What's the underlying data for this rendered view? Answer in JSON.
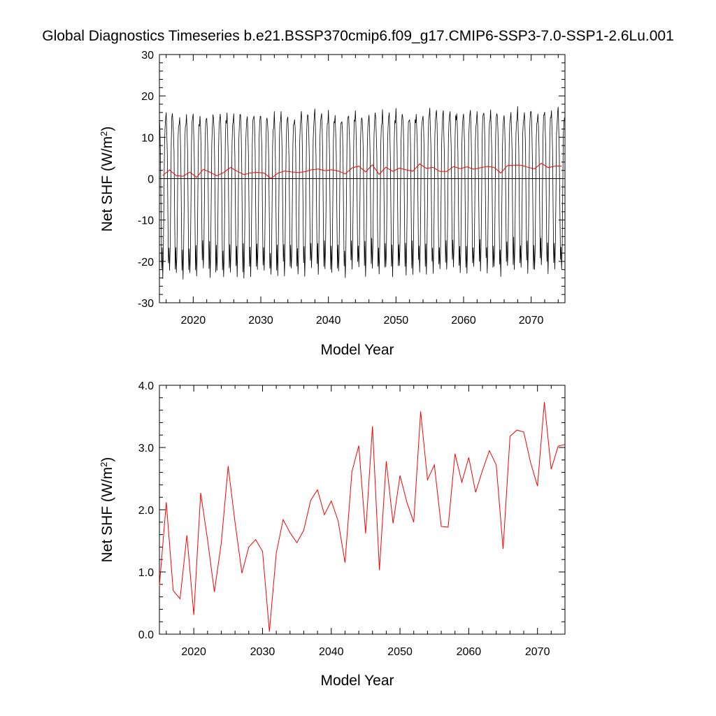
{
  "title": "Global Diagnostics Timeseries b.e21.BSSP370cmip6.f09_g17.CMIP6-SSP3-7.0-SSP1-2.6Lu.001",
  "chart_data": [
    {
      "type": "line",
      "xlabel": "Model Year",
      "ylabel_main": "Net SHF (W/m",
      "ylabel_sup": "2",
      "ylabel_close": ")",
      "xlim": [
        2015,
        2075
      ],
      "ylim": [
        -30,
        30
      ],
      "x_ticks": [
        2020,
        2030,
        2040,
        2050,
        2060,
        2070
      ],
      "y_ticks": [
        30,
        20,
        10,
        0,
        -10,
        -20,
        -30
      ],
      "y_tick_labels": [
        "30",
        "20",
        "10",
        "0",
        "-10",
        "-20",
        "-30"
      ],
      "zero_line": true,
      "series": [
        {
          "color": "#000000",
          "values_desc": "monthly",
          "monthly_seasonal_cycle": {
            "start_year": 2015,
            "month_pattern": [
              15.5,
              12.0,
              6.0,
              -8.0,
              -21.0,
              -16.0,
              -22.5,
              -17.5,
              -5.0,
              9.0,
              13.5,
              14.5
            ]
          }
        },
        {
          "color": "#ff0000",
          "ref": "annual_mean"
        }
      ]
    },
    {
      "type": "line",
      "xlabel": "Model Year",
      "ylabel_main": "Net SHF (W/m",
      "ylabel_sup": "2",
      "ylabel_close": ")",
      "xlim": [
        2015,
        2074
      ],
      "ylim": [
        0.0,
        4.0
      ],
      "x_ticks": [
        2020,
        2030,
        2040,
        2050,
        2060,
        2070
      ],
      "y_ticks": [
        4.0,
        3.0,
        2.0,
        1.0,
        0.0
      ],
      "y_tick_labels": [
        "4.0",
        "3.0",
        "2.0",
        "1.0",
        "0.0"
      ],
      "series": [
        {
          "color": "#ff0000",
          "name": "annual_mean",
          "x": [
            2015,
            2016,
            2017,
            2018,
            2019,
            2020,
            2021,
            2022,
            2023,
            2024,
            2025,
            2026,
            2027,
            2028,
            2029,
            2030,
            2031,
            2032,
            2033,
            2034,
            2035,
            2036,
            2037,
            2038,
            2039,
            2040,
            2041,
            2042,
            2043,
            2044,
            2045,
            2046,
            2047,
            2048,
            2049,
            2050,
            2051,
            2052,
            2053,
            2054,
            2055,
            2056,
            2057,
            2058,
            2059,
            2060,
            2061,
            2062,
            2063,
            2064,
            2065,
            2066,
            2067,
            2068,
            2069,
            2070,
            2071,
            2072,
            2073,
            2074
          ],
          "values": [
            0.78,
            2.12,
            0.7,
            0.57,
            1.59,
            0.31,
            2.27,
            1.52,
            0.68,
            1.47,
            2.7,
            1.8,
            0.98,
            1.4,
            1.52,
            1.33,
            0.04,
            1.3,
            1.84,
            1.63,
            1.47,
            1.67,
            2.15,
            2.32,
            1.92,
            2.14,
            1.82,
            1.15,
            2.61,
            3.03,
            1.62,
            3.34,
            1.03,
            2.78,
            1.78,
            2.55,
            2.12,
            1.8,
            3.58,
            2.48,
            2.72,
            1.73,
            1.72,
            2.9,
            2.44,
            2.84,
            2.28,
            2.63,
            2.95,
            2.72,
            1.37,
            3.18,
            3.28,
            3.25,
            2.76,
            2.38,
            3.73,
            2.65,
            3.02,
            3.05
          ]
        }
      ]
    }
  ]
}
